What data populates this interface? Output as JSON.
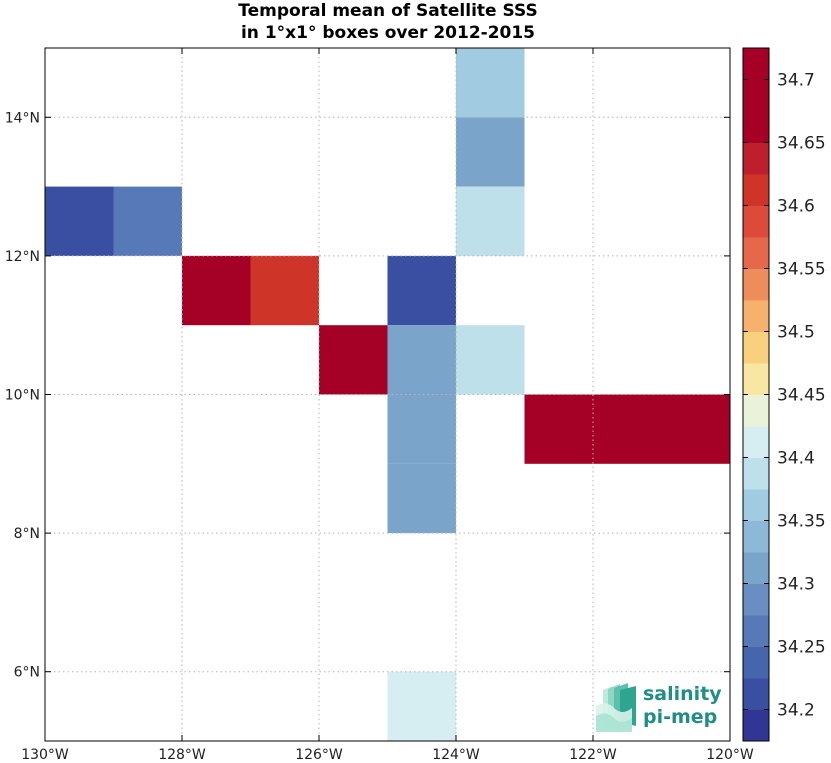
{
  "chart_data": {
    "type": "heatmap",
    "title": [
      "Temporal mean of Satellite SSS",
      "in 1°x1° boxes over 2012-2015"
    ],
    "xlim": [
      -130,
      -120
    ],
    "ylim": [
      5,
      15
    ],
    "xticks": [
      -130,
      -128,
      -126,
      -124,
      -122,
      -120
    ],
    "xtick_labels": [
      "130°W",
      "128°W",
      "126°W",
      "124°W",
      "122°W",
      "120°W"
    ],
    "yticks": [
      6,
      8,
      10,
      12,
      14
    ],
    "ytick_labels": [
      "6°N",
      "8°N",
      "10°N",
      "12°N",
      "14°N"
    ],
    "grid": true,
    "colorbar": {
      "range": [
        34.175,
        34.725
      ],
      "step": 0.025,
      "colors": [
        "#313695",
        "#3a4fa1",
        "#4565ad",
        "#5779b7",
        "#6a8dc2",
        "#7ba4cb",
        "#8db8d7",
        "#a1cbe1",
        "#bde0ea",
        "#d6eef2",
        "#eaf3da",
        "#f8e6a3",
        "#f9d07e",
        "#f6b26c",
        "#ee8d5b",
        "#e6684b",
        "#dc4a3a",
        "#cf3428",
        "#bd1f2c",
        "#a50026",
        "#a50026",
        "#a50026"
      ],
      "tick_values": [
        34.2,
        34.25,
        34.3,
        34.35,
        34.4,
        34.45,
        34.5,
        34.55,
        34.6,
        34.65,
        34.7
      ],
      "tick_labels": [
        "34.2",
        "34.25",
        "34.3",
        "34.35",
        "34.4",
        "34.45",
        "34.5",
        "34.55",
        "34.6",
        "34.65",
        "34.7"
      ]
    },
    "cells": [
      {
        "lon": -129.5,
        "lat": 12.5,
        "value": 34.2
      },
      {
        "lon": -128.5,
        "lat": 12.5,
        "value": 34.26
      },
      {
        "lon": -127.5,
        "lat": 11.5,
        "value": 34.7
      },
      {
        "lon": -126.5,
        "lat": 11.5,
        "value": 34.61
      },
      {
        "lon": -125.5,
        "lat": 10.5,
        "value": 34.66
      },
      {
        "lon": -124.5,
        "lat": 11.5,
        "value": 34.2
      },
      {
        "lon": -124.5,
        "lat": 10.5,
        "value": 34.32
      },
      {
        "lon": -124.5,
        "lat": 9.5,
        "value": 34.32
      },
      {
        "lon": -124.5,
        "lat": 8.5,
        "value": 34.32
      },
      {
        "lon": -124.5,
        "lat": 5.5,
        "value": 34.41
      },
      {
        "lon": -123.5,
        "lat": 14.5,
        "value": 34.35
      },
      {
        "lon": -123.5,
        "lat": 13.5,
        "value": 34.32
      },
      {
        "lon": -123.5,
        "lat": 12.5,
        "value": 34.39
      },
      {
        "lon": -123.5,
        "lat": 10.5,
        "value": 34.39
      },
      {
        "lon": -122.5,
        "lat": 9.5,
        "value": 34.66
      },
      {
        "lon": -121.5,
        "lat": 9.5,
        "value": 34.69
      },
      {
        "lon": -120.5,
        "lat": 9.5,
        "value": 34.66
      }
    ]
  },
  "logo": {
    "line1": "salinity",
    "line2": "pi-mep"
  }
}
